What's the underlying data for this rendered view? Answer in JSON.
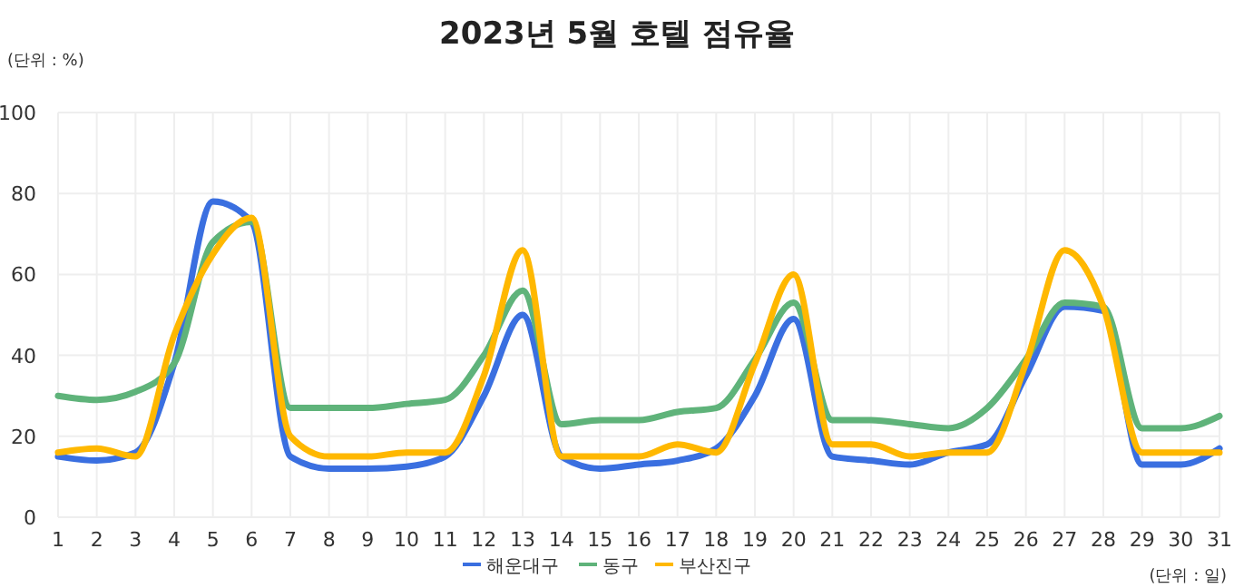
{
  "chart_data": {
    "type": "line",
    "title": "2023년 5월 호텔 점유율",
    "ylabel": "(단위 : %)",
    "xlabel": "(단위 : 일)",
    "x": [
      1,
      2,
      3,
      4,
      5,
      6,
      7,
      8,
      9,
      10,
      11,
      12,
      13,
      14,
      15,
      16,
      17,
      18,
      19,
      20,
      21,
      22,
      23,
      24,
      25,
      26,
      27,
      28,
      29,
      30,
      31
    ],
    "xlim": [
      1,
      31
    ],
    "xticks": [
      1,
      2,
      3,
      4,
      5,
      6,
      7,
      8,
      9,
      10,
      11,
      12,
      13,
      14,
      15,
      16,
      17,
      18,
      19,
      20,
      21,
      22,
      23,
      24,
      25,
      26,
      27,
      28,
      29,
      30,
      31
    ],
    "ylim": [
      0,
      100
    ],
    "yticks": [
      0,
      20,
      40,
      60,
      80,
      100
    ],
    "grid": true,
    "legend": "bottom",
    "marker": "none",
    "line_style": "solid",
    "series": [
      {
        "name": "해운대구",
        "color": "#3a6fe0",
        "values": [
          15,
          14,
          16,
          38,
          78,
          73,
          15,
          12,
          12,
          12.5,
          15,
          30,
          50,
          15,
          12,
          13,
          14,
          17,
          30,
          49,
          15,
          14,
          13,
          16,
          18,
          35,
          52,
          51,
          13,
          13,
          17
        ]
      },
      {
        "name": "동구",
        "color": "#5fb37a",
        "values": [
          30,
          29,
          31,
          38,
          68,
          73,
          27,
          27,
          27,
          28,
          29,
          40,
          56,
          23,
          24,
          24,
          26,
          27,
          39,
          53,
          24,
          24,
          23,
          22,
          27,
          39,
          53,
          52,
          22,
          22,
          25
        ]
      },
      {
        "name": "부산진구",
        "color": "#ffb800",
        "values": [
          16,
          17,
          15,
          45,
          65,
          74,
          20,
          15,
          15,
          16,
          16,
          35,
          66,
          15,
          15,
          15,
          18,
          16,
          38,
          60,
          18,
          18,
          15,
          16,
          16,
          38,
          66,
          52,
          16,
          16,
          16
        ]
      }
    ]
  }
}
